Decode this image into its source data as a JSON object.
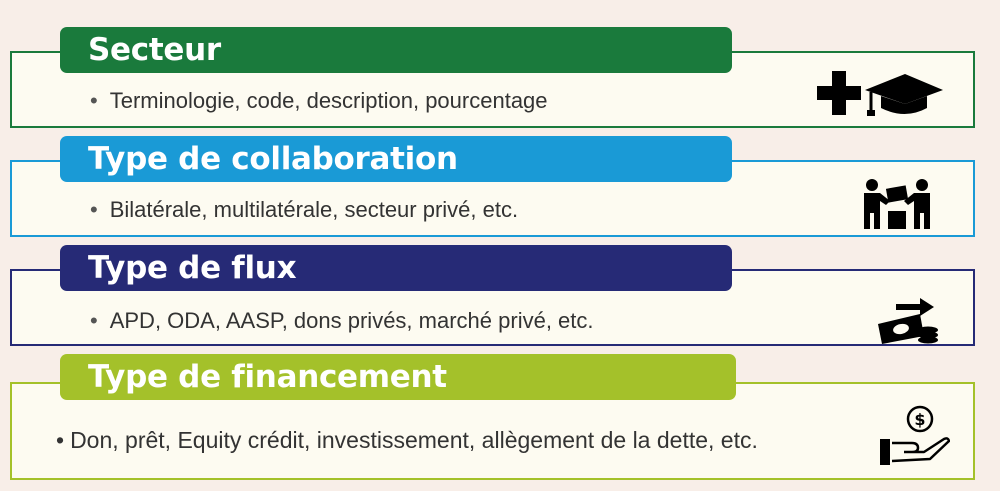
{
  "sections": [
    {
      "title": "Secteur",
      "bullet": "Terminologie, code, description, pourcentage",
      "color": "#1a7a3c",
      "icon": "health-education-icon"
    },
    {
      "title": "Type de collaboration",
      "bullet": "Bilatérale, multilatérale, secteur privé, etc.",
      "color": "#1a9ad6",
      "icon": "collaboration-icon"
    },
    {
      "title": "Type de flux",
      "bullet": "APD, ODA, AASP, dons privés, marché privé, etc.",
      "color": "#262a76",
      "icon": "money-flow-icon"
    },
    {
      "title": "Type de financement",
      "bullet": "Don, prêt, Equity crédit, investissement, allègement de la dette, etc.",
      "color": "#a4c12a",
      "icon": "hand-money-icon"
    }
  ],
  "bullet_symbols": [
    "•",
    "•",
    "•",
    "•"
  ]
}
